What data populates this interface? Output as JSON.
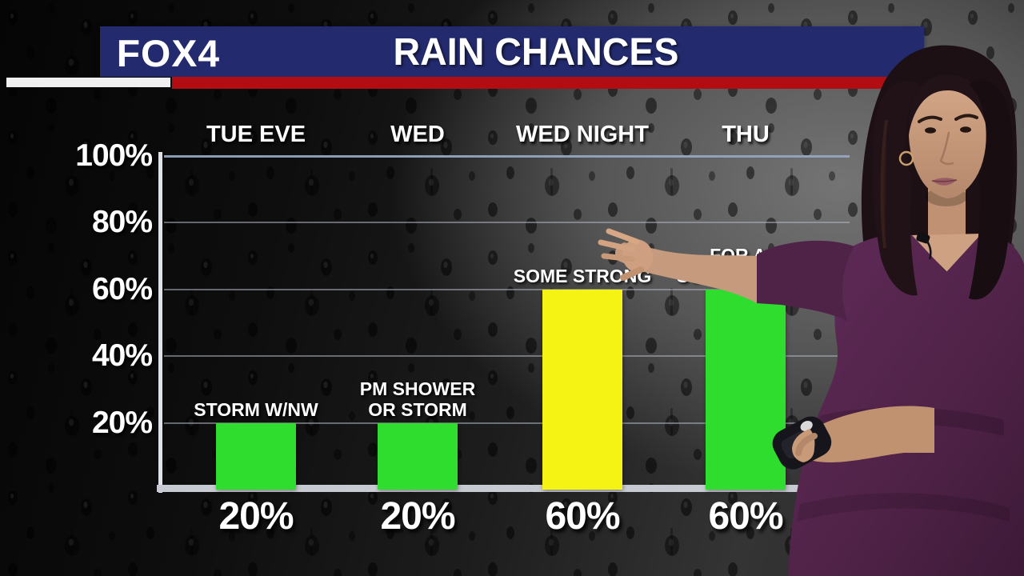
{
  "header": {
    "station_logo": "FOX4",
    "title": "RAIN CHANCES",
    "banner_color": "#232a6e",
    "stripe_red_color": "#b20d12",
    "stripe_white_color": "#f0f0f0"
  },
  "chart_data": {
    "type": "bar",
    "title": "RAIN CHANCES",
    "categories": [
      "TUE EVE",
      "WED",
      "WED NIGHT",
      "THU"
    ],
    "values": [
      20,
      20,
      60,
      60
    ],
    "value_labels": [
      "20%",
      "20%",
      "60%",
      "60%"
    ],
    "bar_colors": [
      "#2edd2e",
      "#2edd2e",
      "#f5f313",
      "#2edd2e"
    ],
    "annotations": [
      [
        "STORM W/NW"
      ],
      [
        "PM SHOWER",
        "OR STORM"
      ],
      [
        "SOME STRONG"
      ],
      [
        "FOR AM",
        "SOME STRONG"
      ]
    ],
    "annotation_obscured": [
      false,
      false,
      false,
      true
    ],
    "y_tick_labels": [
      "100%",
      "80%",
      "60%",
      "40%",
      "20%"
    ],
    "y_tick_values": [
      100,
      80,
      60,
      40,
      20
    ],
    "ylim": [
      0,
      100
    ],
    "grid": true,
    "legend": null
  },
  "presenter": {
    "visible": true,
    "dress_color": "#57254e",
    "description": "meteorologist in purple dress pointing at chart, holding a clicker remote"
  }
}
